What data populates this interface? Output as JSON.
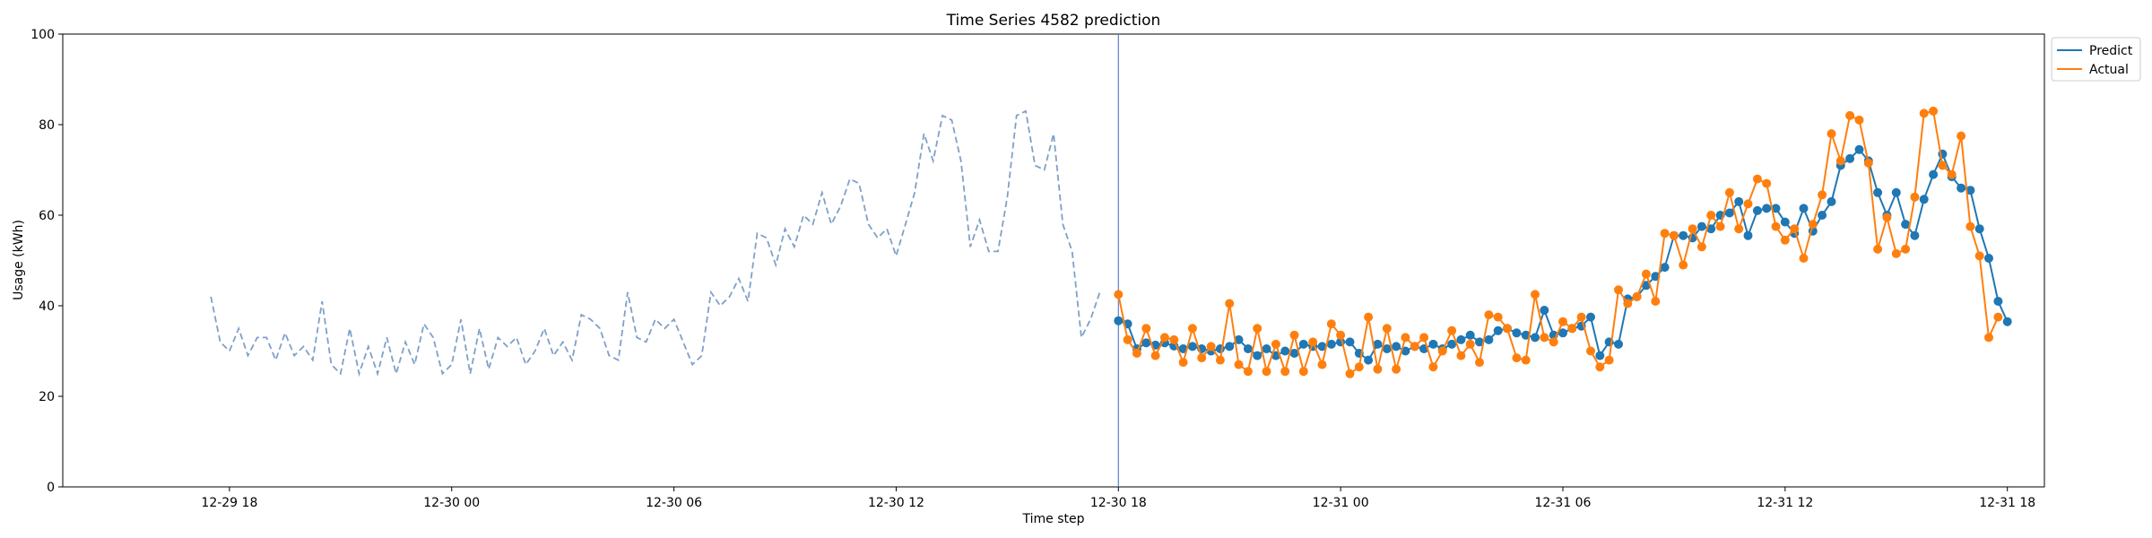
{
  "chart_data": {
    "type": "line",
    "title": "Time Series 4582 prediction",
    "xlabel": "Time step",
    "ylabel": "Usage (kWh)",
    "ylim": [
      0,
      100
    ],
    "xlim": [
      "2023-12-29T13:30",
      "2023-12-31T19:00"
    ],
    "yticks": [
      0,
      20,
      40,
      60,
      80,
      100
    ],
    "xticks": [
      {
        "t": "2023-12-29T18:00",
        "label": "12-29 18"
      },
      {
        "t": "2023-12-30T00:00",
        "label": "12-30 00"
      },
      {
        "t": "2023-12-30T06:00",
        "label": "12-30 06"
      },
      {
        "t": "2023-12-30T12:00",
        "label": "12-30 12"
      },
      {
        "t": "2023-12-30T18:00",
        "label": "12-30 18"
      },
      {
        "t": "2023-12-31T00:00",
        "label": "12-31 00"
      },
      {
        "t": "2023-12-31T06:00",
        "label": "12-31 06"
      },
      {
        "t": "2023-12-31T12:00",
        "label": "12-31 12"
      },
      {
        "t": "2023-12-31T18:00",
        "label": "12-31 18"
      }
    ],
    "grid": false,
    "legend_position": "top-right",
    "vline": "2023-12-30T18:00",
    "history": {
      "start": "2023-12-29T17:30",
      "step_minutes": 15,
      "color": "#7fa0c8",
      "style": "dashed",
      "values": [
        42,
        32,
        30,
        35,
        29,
        33,
        33,
        28,
        34,
        29,
        31,
        28,
        41,
        27,
        25,
        35,
        25,
        31,
        25,
        33,
        25,
        32,
        27,
        36,
        33,
        25,
        27,
        37,
        25,
        35,
        26,
        33,
        31,
        33,
        27,
        30,
        35,
        29,
        32,
        28,
        38,
        37,
        35,
        29,
        28,
        43,
        33,
        32,
        37,
        35,
        37,
        32,
        27,
        29,
        43,
        40,
        42,
        46,
        41,
        56,
        55,
        49,
        57,
        53,
        60,
        58,
        65,
        58,
        62,
        68,
        67,
        58,
        55,
        57,
        51,
        58,
        65,
        78,
        72,
        82,
        81,
        72,
        53,
        59,
        52,
        52,
        64,
        82,
        83,
        71,
        70,
        78,
        58,
        52,
        33,
        37,
        43
      ]
    },
    "series": [
      {
        "name": "Predict",
        "color": "#1f77b4",
        "start": "2023-12-30T18:00",
        "step_minutes": 15,
        "values": [
          36.7,
          36.0,
          30.5,
          31.8,
          31.3,
          31.8,
          31.1,
          30.5,
          31.0,
          30.5,
          30.0,
          30.5,
          31.0,
          32.5,
          30.5,
          29.0,
          30.5,
          29.0,
          30.0,
          29.5,
          31.5,
          31.0,
          31.0,
          31.5,
          32.0,
          32.0,
          29.5,
          28.0,
          31.5,
          30.5,
          31.0,
          30.0,
          31.0,
          30.5,
          31.5,
          30.5,
          31.5,
          32.5,
          33.5,
          32.0,
          32.5,
          34.5,
          35.0,
          34.0,
          33.5,
          33.0,
          39.0,
          33.5,
          34.0,
          35.0,
          35.5,
          37.5,
          29.0,
          32.0,
          31.5,
          41.5,
          42.0,
          44.5,
          46.5,
          48.5,
          55.5,
          55.5,
          55.0,
          57.5,
          57.0,
          60.0,
          60.5,
          63.0,
          55.5,
          61.0,
          61.5,
          61.5,
          58.5,
          56.0,
          61.5,
          56.5,
          60.0,
          63.0,
          71.0,
          72.5,
          74.5,
          72.0,
          65.0,
          60.0,
          65.0,
          58.0,
          55.5,
          63.5,
          69.0,
          73.5,
          68.5,
          66.0,
          65.5,
          57.0,
          50.5,
          41.0,
          36.5
        ]
      },
      {
        "name": "Actual",
        "color": "#ff7f0e",
        "start": "2023-12-30T18:00",
        "step_minutes": 15,
        "values": [
          42.5,
          32.5,
          29.5,
          35.0,
          29.0,
          33.0,
          32.5,
          27.5,
          35.0,
          28.5,
          31.0,
          28.0,
          40.5,
          27.0,
          25.5,
          35.0,
          25.5,
          31.5,
          25.5,
          33.5,
          25.5,
          32.0,
          27.0,
          36.0,
          33.5,
          25.0,
          26.5,
          37.5,
          26.0,
          35.0,
          26.0,
          33.0,
          31.0,
          33.0,
          26.5,
          30.0,
          34.5,
          29.0,
          31.5,
          27.5,
          38.0,
          37.5,
          35.0,
          28.5,
          28.0,
          42.5,
          33.0,
          32.0,
          36.5,
          35.0,
          37.5,
          30.0,
          26.5,
          28.0,
          43.5,
          40.5,
          42.0,
          47.0,
          41.0,
          56.0,
          55.5,
          49.0,
          57.0,
          53.0,
          60.0,
          57.5,
          65.0,
          57.0,
          62.5,
          68.0,
          67.0,
          57.5,
          54.5,
          57.0,
          50.5,
          58.0,
          64.5,
          78.0,
          72.0,
          82.0,
          81.0,
          71.5,
          52.5,
          59.5,
          51.5,
          52.5,
          64.0,
          82.5,
          83.0,
          71.0,
          69.0,
          77.5,
          57.5,
          51.0,
          33.0,
          37.5
        ]
      }
    ]
  }
}
